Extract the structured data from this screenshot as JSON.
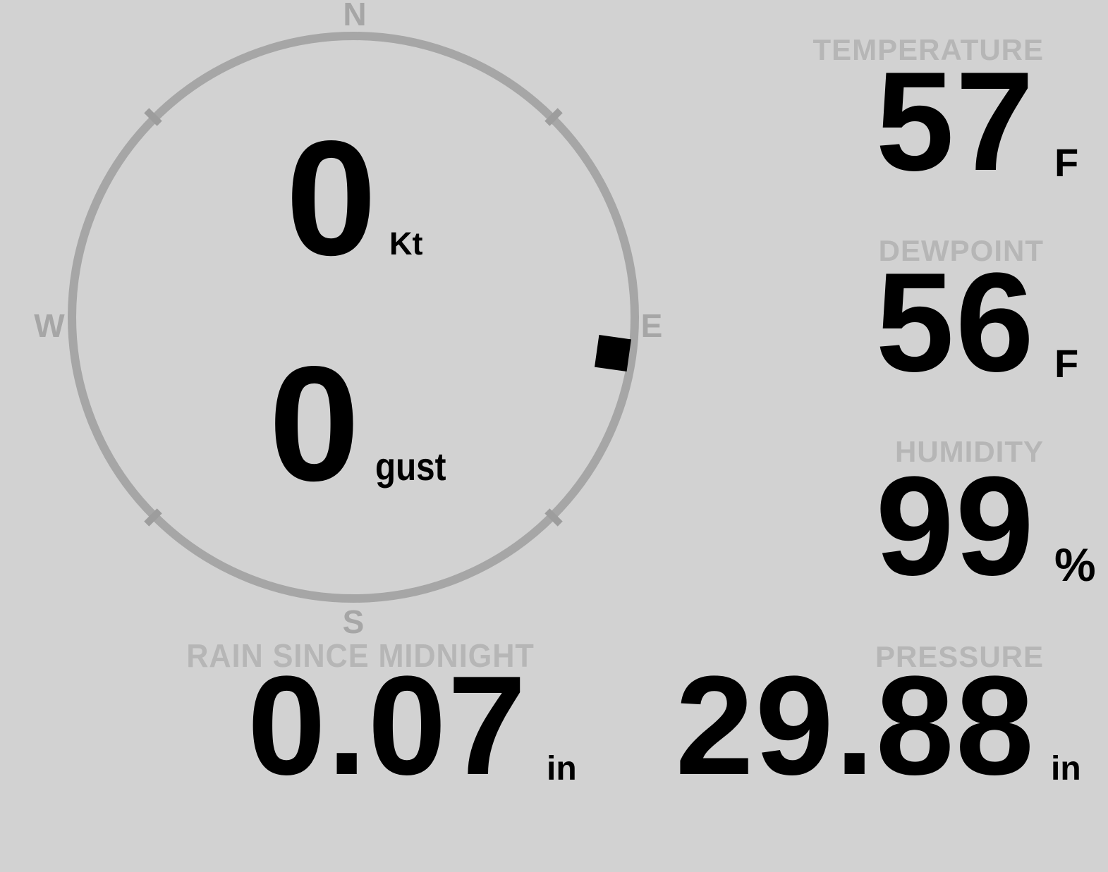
{
  "colors": {
    "background": "#d2d2d2",
    "ring_gray": "#a6a6a6",
    "label_gray": "#b6b6b6",
    "value_black": "#000000"
  },
  "compass": {
    "cardinals": {
      "north": "N",
      "east": "E",
      "south": "S",
      "west": "W"
    },
    "wind_speed": {
      "value": "0",
      "unit": "Kt"
    },
    "wind_gust": {
      "value": "0",
      "unit": "gust"
    },
    "direction_marker_bearing_deg": 98
  },
  "metrics": {
    "temperature": {
      "label": "TEMPERATURE",
      "value": "57",
      "unit": "F"
    },
    "dewpoint": {
      "label": "DEWPOINT",
      "value": "56",
      "unit": "F"
    },
    "humidity": {
      "label": "HUMIDITY",
      "value": "99",
      "unit": "%"
    },
    "pressure": {
      "label": "PRESSURE",
      "value": "29.88",
      "unit": "in"
    },
    "rain": {
      "label": "RAIN SINCE MIDNIGHT",
      "value": "0.07",
      "unit": "in"
    }
  }
}
